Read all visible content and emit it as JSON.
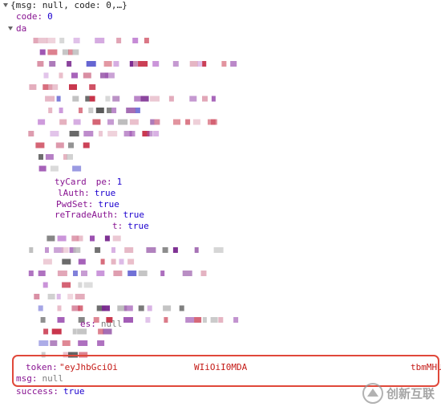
{
  "summary": "{msg: null, code: 0,…}",
  "code": {
    "key": "code:",
    "value": "0"
  },
  "data_key": "da",
  "fields": [
    {
      "key": "tyCard",
      "rest": "pe:",
      "value": "1"
    },
    {
      "key": "lAuth:",
      "value": "true"
    },
    {
      "key": "PwdSet:",
      "value": "true"
    },
    {
      "key": "reTradeAuth:",
      "value": "true"
    },
    {
      "key": "t:",
      "value": "true"
    },
    {
      "key": "es:",
      "value": "null"
    }
  ],
  "token": {
    "key": "token:",
    "parts": [
      "\"eyJhbGciOi",
      "WIiOiI0MDA",
      "tbmMHU"
    ]
  },
  "msg": {
    "key": "msg:",
    "value": "null"
  },
  "success": {
    "key": "success:",
    "value": "true"
  },
  "watermark": "创新互联"
}
